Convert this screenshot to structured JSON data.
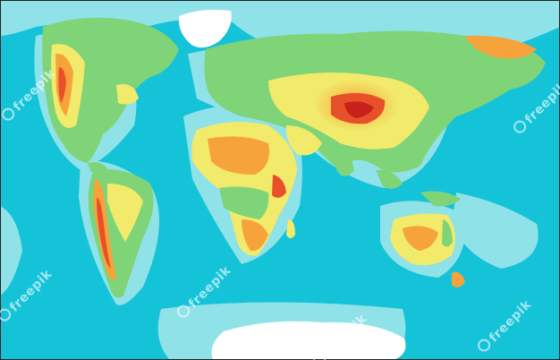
{
  "map": {
    "colors": {
      "ocean_deep": "#15c3d9",
      "ocean_shelf": "#8fe2e8",
      "ice": "#ffffff",
      "lowland": "#7fd478",
      "upland": "#f2ea6b",
      "plateau": "#f7a33c",
      "mountain": "#e8502a",
      "peak": "#c8201a",
      "frame": "#222222"
    }
  },
  "watermark": {
    "text": "freepik"
  }
}
